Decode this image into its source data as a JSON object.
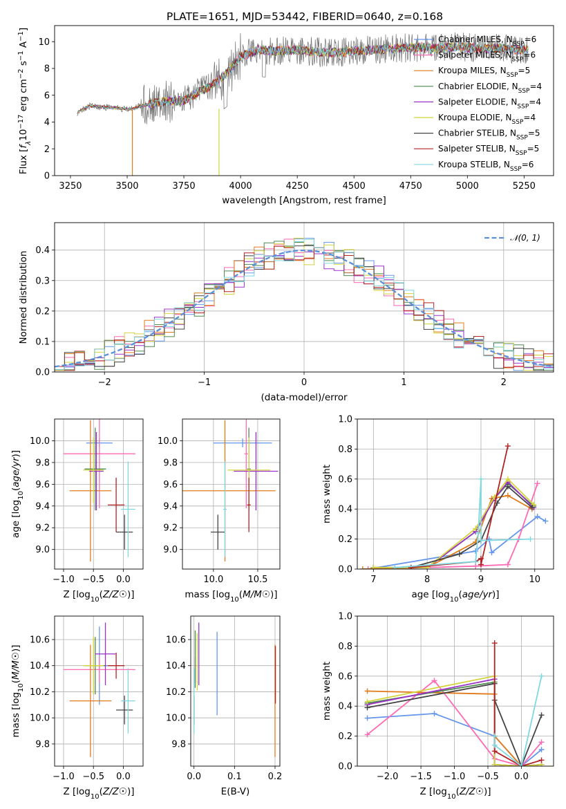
{
  "figure": {
    "title": "PLATE=1651, MJD=53442, FIBERID=0640, z=0.168"
  },
  "chart_data": [
    {
      "type": "line",
      "name": "spectrum",
      "xlabel": "wavelength [Angstrom, rest frame]",
      "ylabel": "Flux [f_λ10^-17 erg cm^-2 s^-1 A^-1]",
      "xlim": [
        3180,
        5380
      ],
      "ylim": [
        0,
        11.2
      ],
      "xticks": [
        3250,
        3500,
        3750,
        4000,
        4250,
        4500,
        4750,
        5000,
        5250
      ],
      "yticks": [
        0,
        2,
        4,
        6,
        8,
        10
      ],
      "grid": false,
      "legend_position": "top-right",
      "legend": [
        {
          "name": "Chabrier MILES, N_SSP=6",
          "color": "#6495ed"
        },
        {
          "name": "Salpeter MILES, N_SSP=6",
          "color": "#ff69b4"
        },
        {
          "name": "Kroupa MILES, N_SSP=5",
          "color": "#e07b1a"
        },
        {
          "name": "Chabrier ELODIE, N_SSP=4",
          "color": "#4d8a4d"
        },
        {
          "name": "Salpeter ELODIE, N_SSP=4",
          "color": "#9b30c8"
        },
        {
          "name": "Kroupa ELODIE, N_SSP=4",
          "color": "#d4d43a"
        },
        {
          "name": "Chabrier STELIB, N_SSP=5",
          "color": "#444444"
        },
        {
          "name": "Salpeter STELIB, N_SSP=5",
          "color": "#b22222"
        },
        {
          "name": "Kroupa STELIB, N_SSP=6",
          "color": "#7fd8e0"
        }
      ],
      "continuum": {
        "x": [
          3280,
          3330,
          3400,
          3450,
          3520,
          3560,
          3650,
          3750,
          3800,
          3870,
          3950,
          4000,
          4080,
          4150,
          4250,
          4350,
          4450,
          4500,
          4600,
          4700,
          4800,
          4850,
          4950,
          5050,
          5150,
          5200,
          5270
        ],
        "y": [
          4.7,
          5.2,
          5.1,
          5.05,
          4.95,
          5.2,
          5.5,
          5.6,
          6.1,
          6.7,
          7.8,
          8.9,
          9.4,
          9.3,
          9.4,
          9.2,
          9.2,
          9.3,
          9.4,
          9.5,
          9.6,
          9.5,
          9.6,
          9.5,
          9.5,
          9.4,
          9.4
        ]
      }
    },
    {
      "type": "bar",
      "name": "residual-histogram",
      "xlabel": "(data-model)/error",
      "ylabel": "Normed distribution",
      "xlim": [
        -2.5,
        2.5
      ],
      "ylim": [
        0,
        0.49
      ],
      "xticks": [
        -2,
        -1,
        0,
        1,
        2
      ],
      "yticks": [
        0.0,
        0.1,
        0.2,
        0.3,
        0.4
      ],
      "grid": true,
      "legend_position": "top-right",
      "reference_curve": {
        "name": "𝒩(0, 1)",
        "mean": 0,
        "sigma": 1,
        "color": "#5b8fd6"
      },
      "series": [
        {
          "name": "Chabrier MILES",
          "color": "#6495ed"
        },
        {
          "name": "Salpeter MILES",
          "color": "#ff69b4"
        },
        {
          "name": "Kroupa MILES",
          "color": "#e07b1a"
        },
        {
          "name": "Chabrier ELODIE",
          "color": "#4d8a4d"
        },
        {
          "name": "Salpeter ELODIE",
          "color": "#9b30c8"
        },
        {
          "name": "Kroupa ELODIE",
          "color": "#d4d43a"
        },
        {
          "name": "Chabrier STELIB",
          "color": "#444444"
        },
        {
          "name": "Salpeter STELIB",
          "color": "#b22222"
        },
        {
          "name": "Kroupa STELIB",
          "color": "#7fd8e0"
        }
      ]
    },
    {
      "type": "scatter",
      "name": "age-vs-Z",
      "xlabel": "Z [log10(Z/Z☉)]",
      "ylabel": "age  [log10(age/yr)]",
      "xlim": [
        -1.15,
        0.33
      ],
      "ylim": [
        8.82,
        10.2
      ],
      "xticks": [
        -1.0,
        -0.5,
        0.0
      ],
      "yticks": [
        9.0,
        9.2,
        9.4,
        9.6,
        9.8,
        10.0
      ],
      "grid": true,
      "points": [
        {
          "x": -0.4,
          "y": 9.98,
          "xerr": 0.22,
          "yerr": 0.04,
          "color": "#6495ed"
        },
        {
          "x": -0.4,
          "y": 9.88,
          "xerr": 0.6,
          "yerr": 0.5,
          "color": "#ff69b4"
        },
        {
          "x": -0.55,
          "y": 9.54,
          "xerr": 0.35,
          "yerr": 0.65,
          "color": "#e07b1a"
        },
        {
          "x": -0.47,
          "y": 9.74,
          "xerr": 0.18,
          "yerr": 0.38,
          "color": "#4d8a4d"
        },
        {
          "x": -0.45,
          "y": 9.72,
          "xerr": 0.12,
          "yerr": 0.36,
          "color": "#9b30c8"
        },
        {
          "x": -0.5,
          "y": 9.73,
          "xerr": 0.17,
          "yerr": 0.3,
          "color": "#d4d43a"
        },
        {
          "x": 0.02,
          "y": 9.16,
          "xerr": 0.14,
          "yerr": 0.16,
          "color": "#444444"
        },
        {
          "x": -0.12,
          "y": 9.41,
          "xerr": 0.14,
          "yerr": 0.25,
          "color": "#b22222"
        },
        {
          "x": 0.08,
          "y": 9.37,
          "xerr": 0.12,
          "yerr": 0.44,
          "color": "#7fd8e0"
        }
      ]
    },
    {
      "type": "scatter",
      "name": "age-vs-mass",
      "xlabel": "mass [log10(M/M☉)]",
      "ylabel": "",
      "xlim": [
        9.65,
        10.75
      ],
      "ylim": [
        8.82,
        10.2
      ],
      "xticks": [
        10.0,
        10.5
      ],
      "yticks": [
        9.0,
        9.2,
        9.4,
        9.6,
        9.8,
        10.0
      ],
      "grid": true,
      "points": [
        {
          "x": 10.33,
          "y": 9.98,
          "xerr": 0.33,
          "yerr": 0.04,
          "color": "#6495ed"
        },
        {
          "x": 10.37,
          "y": 9.88,
          "xerr": 0.02,
          "yerr": 0.5,
          "color": "#ff69b4"
        },
        {
          "x": 10.13,
          "y": 9.54,
          "xerr": 0.57,
          "yerr": 0.65,
          "color": "#e07b1a"
        },
        {
          "x": 10.4,
          "y": 9.74,
          "xerr": 0.02,
          "yerr": 0.38,
          "color": "#4d8a4d"
        },
        {
          "x": 10.48,
          "y": 9.72,
          "xerr": 0.25,
          "yerr": 0.36,
          "color": "#9b30c8"
        },
        {
          "x": 10.4,
          "y": 9.73,
          "xerr": 0.24,
          "yerr": 0.3,
          "color": "#d4d43a"
        },
        {
          "x": 10.05,
          "y": 9.16,
          "xerr": 0.08,
          "yerr": 0.16,
          "color": "#444444"
        },
        {
          "x": 10.4,
          "y": 9.41,
          "xerr": 0.02,
          "yerr": 0.25,
          "color": "#b22222"
        },
        {
          "x": 10.13,
          "y": 9.37,
          "xerr": 0.02,
          "yerr": 0.44,
          "color": "#7fd8e0"
        }
      ]
    },
    {
      "type": "line",
      "name": "mass-weight-vs-age",
      "xlabel": "age  [log10(age/yr)]",
      "ylabel": "mass weight",
      "xlim": [
        6.7,
        10.35
      ],
      "ylim": [
        0,
        1
      ],
      "xticks": [
        7,
        8,
        9,
        10
      ],
      "yticks": [
        0.0,
        0.2,
        0.4,
        0.6,
        0.8,
        1.0
      ],
      "grid": true,
      "series": [
        {
          "name": "Chabrier MILES",
          "color": "#6495ed",
          "x": [
            6.9,
            8.9,
            9.15,
            9.2,
            10.05,
            10.2
          ],
          "y": [
            0,
            0.12,
            0.2,
            0.11,
            0.35,
            0.32
          ]
        },
        {
          "name": "Salpeter MILES",
          "color": "#ff69b4",
          "x": [
            6.9,
            8.0,
            8.9,
            9.5,
            9.7,
            10.05
          ],
          "y": [
            0,
            0.01,
            0.02,
            0.03,
            0.2,
            0.57
          ]
        },
        {
          "name": "Kroupa MILES",
          "color": "#e07b1a",
          "x": [
            6.8,
            8.0,
            8.9,
            9.2,
            9.5,
            9.95
          ],
          "y": [
            0,
            0.01,
            0.18,
            0.47,
            0.49,
            0.4
          ]
        },
        {
          "name": "Chabrier ELODIE",
          "color": "#4d8a4d",
          "x": [
            7.0,
            8.0,
            8.9,
            9.25,
            9.5,
            9.98
          ],
          "y": [
            0.01,
            0.01,
            0.25,
            0.47,
            0.57,
            0.42
          ]
        },
        {
          "name": "Salpeter ELODIE",
          "color": "#9b30c8",
          "x": [
            7.0,
            8.0,
            8.9,
            9.25,
            9.5,
            9.98
          ],
          "y": [
            0.01,
            0.01,
            0.25,
            0.47,
            0.58,
            0.41
          ]
        },
        {
          "name": "Kroupa ELODIE",
          "color": "#d4d43a",
          "x": [
            7.0,
            8.0,
            8.9,
            9.25,
            9.5,
            9.98
          ],
          "y": [
            0.01,
            0.01,
            0.27,
            0.48,
            0.6,
            0.43
          ]
        },
        {
          "name": "Chabrier STELIB",
          "color": "#444444",
          "x": [
            7.7,
            8.6,
            9.0,
            9.3,
            9.5,
            9.95
          ],
          "y": [
            0.01,
            0.1,
            0.19,
            0.44,
            0.55,
            0.41
          ]
        },
        {
          "name": "Salpeter STELIB",
          "color": "#b22222",
          "x": [
            7.7,
            8.9,
            9.0,
            9.0,
            9.5
          ],
          "y": [
            0.01,
            0.05,
            0.07,
            0.03,
            0.82
          ]
        },
        {
          "name": "Kroupa STELIB",
          "color": "#7fd8e0",
          "x": [
            7.4,
            8.9,
            8.95,
            9.0,
            9.0,
            9.92
          ],
          "y": [
            0.01,
            0.05,
            0.24,
            0.6,
            0.19,
            0.2
          ]
        }
      ]
    },
    {
      "type": "scatter",
      "name": "mass-vs-Z",
      "xlabel": "Z [log10(Z/Z☉)]",
      "ylabel": "mass [log10(M/M☉)]",
      "xlim": [
        -1.15,
        0.33
      ],
      "ylim": [
        9.63,
        10.78
      ],
      "xticks": [
        -1.0,
        -0.5,
        0.0
      ],
      "yticks": [
        9.8,
        10.0,
        10.2,
        10.4,
        10.6
      ],
      "grid": true,
      "points": [
        {
          "x": -0.4,
          "y": 10.4,
          "xerr": 0.22,
          "yerr": 0.3,
          "color": "#6495ed"
        },
        {
          "x": -0.4,
          "y": 10.37,
          "xerr": 0.6,
          "yerr": 0.1,
          "color": "#ff69b4"
        },
        {
          "x": -0.55,
          "y": 10.13,
          "xerr": 0.35,
          "yerr": 0.43,
          "color": "#e07b1a"
        },
        {
          "x": -0.47,
          "y": 10.4,
          "xerr": 0.18,
          "yerr": 0.22,
          "color": "#4d8a4d"
        },
        {
          "x": -0.3,
          "y": 10.49,
          "xerr": 0.17,
          "yerr": 0.24,
          "color": "#9b30c8"
        },
        {
          "x": -0.5,
          "y": 10.4,
          "xerr": 0.17,
          "yerr": 0.22,
          "color": "#d4d43a"
        },
        {
          "x": 0.02,
          "y": 10.06,
          "xerr": 0.14,
          "yerr": 0.11,
          "color": "#444444"
        },
        {
          "x": -0.12,
          "y": 10.4,
          "xerr": 0.14,
          "yerr": 0.1,
          "color": "#b22222"
        },
        {
          "x": 0.08,
          "y": 10.13,
          "xerr": 0.12,
          "yerr": 0.25,
          "color": "#7fd8e0"
        }
      ]
    },
    {
      "type": "scatter",
      "name": "mass-vs-EBV",
      "xlabel": "E(B-V)",
      "ylabel": "",
      "xlim": [
        -0.008,
        0.212
      ],
      "ylim": [
        9.63,
        10.78
      ],
      "xticks": [
        0.0,
        0.1,
        0.2
      ],
      "yticks": [
        9.8,
        10.0,
        10.2,
        10.4,
        10.6
      ],
      "grid": true,
      "points": [
        {
          "x": 0.057,
          "y": 10.34,
          "yerr": 0.32,
          "color": "#6495ed"
        },
        {
          "x": 0.003,
          "y": 10.37,
          "yerr": 0.1,
          "color": "#ff69b4"
        },
        {
          "x": 0.2,
          "y": 10.13,
          "yerr": 0.43,
          "color": "#e07b1a"
        },
        {
          "x": 0.003,
          "y": 10.45,
          "yerr": 0.22,
          "color": "#4d8a4d"
        },
        {
          "x": 0.012,
          "y": 10.49,
          "yerr": 0.24,
          "color": "#9b30c8"
        },
        {
          "x": 0.008,
          "y": 10.43,
          "yerr": 0.22,
          "color": "#d4d43a"
        },
        {
          "x": 0.0,
          "y": 10.06,
          "yerr": 0.11,
          "color": "#444444"
        },
        {
          "x": 0.201,
          "y": 10.33,
          "yerr": 0.22,
          "color": "#b22222"
        },
        {
          "x": 0.0,
          "y": 10.13,
          "yerr": 0.25,
          "color": "#7fd8e0"
        }
      ]
    },
    {
      "type": "line",
      "name": "mass-weight-vs-Z",
      "xlabel": "Z [log10(Z/Z☉)]",
      "ylabel": "mass weight",
      "xlim": [
        -2.45,
        0.48
      ],
      "ylim": [
        0,
        1
      ],
      "xticks": [
        -2.0,
        -1.5,
        -1.0,
        -0.5,
        0.0
      ],
      "yticks": [
        0.0,
        0.2,
        0.4,
        0.6,
        0.8,
        1.0
      ],
      "grid": true,
      "series": [
        {
          "name": "Chabrier MILES",
          "color": "#6495ed",
          "x": [
            -2.3,
            -1.3,
            -0.4,
            0.0,
            0.3
          ],
          "y": [
            0.32,
            0.35,
            0.2,
            0.0,
            0.11
          ]
        },
        {
          "name": "Salpeter MILES",
          "color": "#ff69b4",
          "x": [
            -2.3,
            -1.3,
            -0.4,
            0.0,
            0.3
          ],
          "y": [
            0.21,
            0.57,
            0.05,
            0.0,
            0.16
          ]
        },
        {
          "name": "Kroupa MILES",
          "color": "#e07b1a",
          "x": [
            -2.3,
            -0.4,
            -0.4,
            0.0
          ],
          "y": [
            0.5,
            0.48,
            0.2,
            0.0
          ]
        },
        {
          "name": "Chabrier ELODIE",
          "color": "#4d8a4d",
          "x": [
            -2.3,
            -0.4,
            -0.4,
            0.0,
            0.3
          ],
          "y": [
            0.42,
            0.56,
            0.01,
            0.0,
            0.01
          ]
        },
        {
          "name": "Salpeter ELODIE",
          "color": "#9b30c8",
          "x": [
            -2.3,
            -0.4,
            -0.4,
            0.0,
            0.3
          ],
          "y": [
            0.41,
            0.58,
            0.01,
            0.0,
            0.01
          ]
        },
        {
          "name": "Kroupa ELODIE",
          "color": "#d4d43a",
          "x": [
            -2.3,
            -0.4,
            -0.4,
            0.0,
            0.3
          ],
          "y": [
            0.43,
            0.6,
            0.01,
            0.0,
            0.01
          ]
        },
        {
          "name": "Chabrier STELIB",
          "color": "#444444",
          "x": [
            -2.3,
            -0.4,
            -0.4,
            0.0,
            0.3
          ],
          "y": [
            0.39,
            0.55,
            0.44,
            0.0,
            0.34
          ]
        },
        {
          "name": "Salpeter STELIB",
          "color": "#b22222",
          "x": [
            -0.4,
            -0.4,
            0.0,
            0.3
          ],
          "y": [
            0.82,
            0.1,
            0.0,
            0.04
          ]
        },
        {
          "name": "Kroupa STELIB",
          "color": "#7fd8e0",
          "x": [
            -0.4,
            -0.4,
            0.0,
            0.3
          ],
          "y": [
            0.2,
            0.14,
            0.0,
            0.6
          ]
        }
      ]
    }
  ]
}
